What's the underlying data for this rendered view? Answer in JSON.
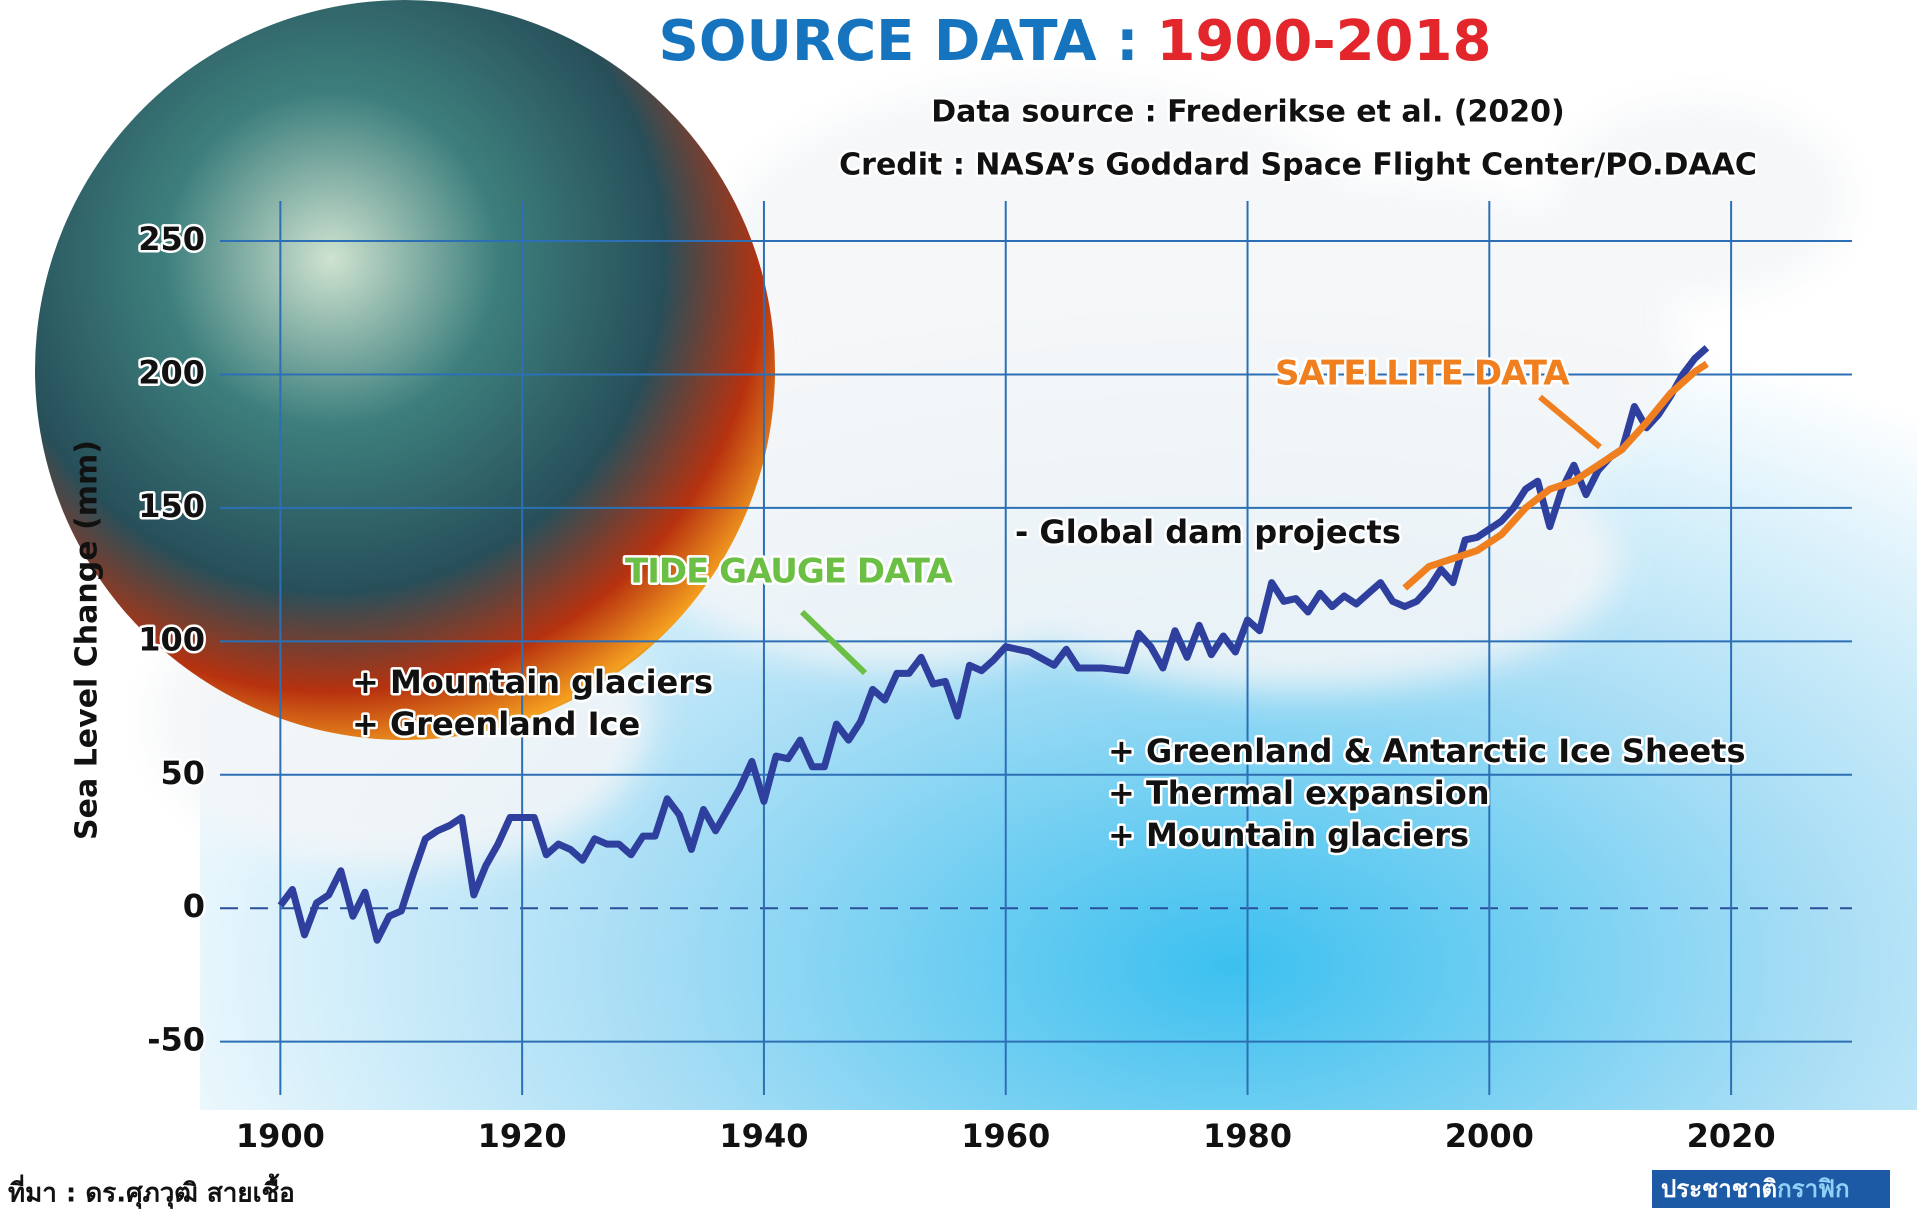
{
  "chart_data": {
    "type": "line",
    "title": "SOURCE DATA :",
    "title_years": "1900-2018",
    "subtitle": "Data source : Frederikse et al. (2020)",
    "credit": "Credit : NASA’s Goddard Space Flight Center/PO.DAAC",
    "y_label": "Sea Level Change (mm)",
    "xlim": [
      1896,
      2030
    ],
    "xticks": [
      1900,
      1920,
      1940,
      1960,
      1980,
      2000,
      2020
    ],
    "ylim": [
      -70,
      265
    ],
    "yticks": [
      -50,
      0,
      50,
      100,
      150,
      200,
      250
    ],
    "grid": true,
    "series": [
      {
        "name": "TIDE GAUGE DATA",
        "color": "#2e3f9e",
        "x": [
          1900,
          1901,
          1902,
          1903,
          1904,
          1905,
          1906,
          1907,
          1908,
          1909,
          1910,
          1911,
          1912,
          1913,
          1914,
          1915,
          1916,
          1917,
          1918,
          1919,
          1920,
          1921,
          1922,
          1923,
          1924,
          1925,
          1926,
          1927,
          1928,
          1929,
          1930,
          1931,
          1932,
          1933,
          1934,
          1935,
          1936,
          1937,
          1938,
          1939,
          1940,
          1941,
          1942,
          1943,
          1944,
          1945,
          1946,
          1947,
          1948,
          1949,
          1950,
          1951,
          1952,
          1953,
          1954,
          1955,
          1956,
          1957,
          1958,
          1959,
          1960,
          1962,
          1964,
          1965,
          1966,
          1968,
          1970,
          1971,
          1972,
          1973,
          1974,
          1975,
          1976,
          1977,
          1978,
          1979,
          1980,
          1981,
          1982,
          1983,
          1984,
          1985,
          1986,
          1987,
          1988,
          1989,
          1990,
          1991,
          1992,
          1993,
          1994,
          1995,
          1996,
          1997,
          1998,
          1999,
          2000,
          2001,
          2002,
          2003,
          2004,
          2005,
          2006,
          2007,
          2008,
          2009,
          2010,
          2011,
          2012,
          2013,
          2014,
          2015,
          2016,
          2017,
          2018
        ],
        "values": [
          1,
          7,
          -10,
          2,
          5,
          14,
          -3,
          6,
          -12,
          -3,
          -1,
          13,
          26,
          29,
          31,
          34,
          5,
          16,
          24,
          34,
          34,
          34,
          20,
          24,
          22,
          18,
          26,
          24,
          24,
          20,
          27,
          27,
          41,
          35,
          22,
          37,
          29,
          37,
          45,
          55,
          40,
          57,
          56,
          63,
          53,
          53,
          69,
          63,
          70,
          82,
          78,
          88,
          88,
          94,
          84,
          85,
          72,
          91,
          89,
          93,
          98,
          96,
          91,
          97,
          90,
          90,
          89,
          103,
          98,
          90,
          104,
          94,
          106,
          95,
          102,
          96,
          108,
          104,
          122,
          115,
          116,
          111,
          118,
          113,
          117,
          114,
          118,
          122,
          115,
          113,
          115,
          120,
          127,
          122,
          138,
          139,
          142,
          145,
          150,
          157,
          160,
          143,
          157,
          166,
          155,
          164,
          169,
          172,
          188,
          180,
          185,
          192,
          200,
          206,
          210
        ]
      },
      {
        "name": "SATELLITE DATA",
        "color": "#f07f1f",
        "x": [
          1993,
          1995,
          1997,
          1999,
          2001,
          2003,
          2005,
          2007,
          2009,
          2011,
          2013,
          2015,
          2017,
          2018
        ],
        "values": [
          120,
          128,
          131,
          134,
          140,
          150,
          157,
          160,
          166,
          172,
          182,
          193,
          201,
          204
        ]
      }
    ],
    "annotations": [
      "- Global dam projects",
      "+ Mountain glaciers",
      "+ Greenland Ice",
      "+ Greenland & Antarctic Ice Sheets",
      "+ Thermal expansion",
      "+ Mountain glaciers"
    ]
  },
  "footer": {
    "source": "ที่มา : ดร.ศุภวุฒิ สายเชื้อ",
    "brand": "ประชาชาติ",
    "brand_accent": "กราฟิก"
  }
}
